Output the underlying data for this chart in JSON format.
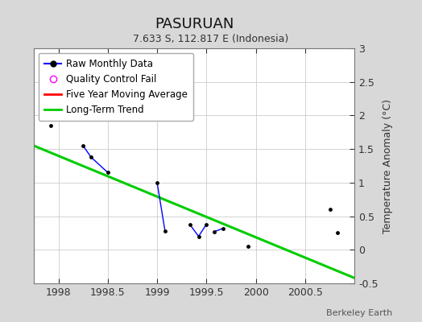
{
  "title": "PASURUAN",
  "subtitle": "7.633 S, 112.817 E (Indonesia)",
  "ylabel": "Temperature Anomaly (°C)",
  "credit": "Berkeley Earth",
  "xlim": [
    1997.75,
    2001.0
  ],
  "ylim": [
    -0.5,
    3.0
  ],
  "xticks": [
    1998,
    1998.5,
    1999,
    1999.5,
    2000,
    2000.5
  ],
  "yticks": [
    -0.5,
    0.0,
    0.5,
    1.0,
    1.5,
    2.0,
    2.5,
    3.0
  ],
  "ytick_labels": [
    "-0.5",
    "0",
    "0.5",
    "1",
    "1.5",
    "2",
    "2.5",
    "3"
  ],
  "background_color": "#d8d8d8",
  "plot_bg_color": "#ffffff",
  "raw_segments": [
    {
      "x": [
        1997.92
      ],
      "y": [
        1.85
      ]
    },
    {
      "x": [
        1998.25,
        1998.33,
        1998.5
      ],
      "y": [
        1.55,
        1.38,
        1.15
      ]
    },
    {
      "x": [
        1999.0,
        1999.08
      ],
      "y": [
        1.0,
        0.28
      ]
    },
    {
      "x": [
        1999.33,
        1999.42,
        1999.5
      ],
      "y": [
        0.38,
        0.2,
        0.38
      ]
    },
    {
      "x": [
        1999.58,
        1999.67
      ],
      "y": [
        0.27,
        0.32
      ]
    },
    {
      "x": [
        1999.92
      ],
      "y": [
        0.05
      ]
    },
    {
      "x": [
        2000.75
      ],
      "y": [
        0.6
      ]
    },
    {
      "x": [
        2000.83
      ],
      "y": [
        0.25
      ]
    }
  ],
  "trend_x": [
    1997.75,
    2001.0
  ],
  "trend_y": [
    1.55,
    -0.42
  ],
  "raw_color": "#0000ff",
  "marker_color": "#000000",
  "trend_color": "#00cc00",
  "mavg_color": "#ff0000"
}
